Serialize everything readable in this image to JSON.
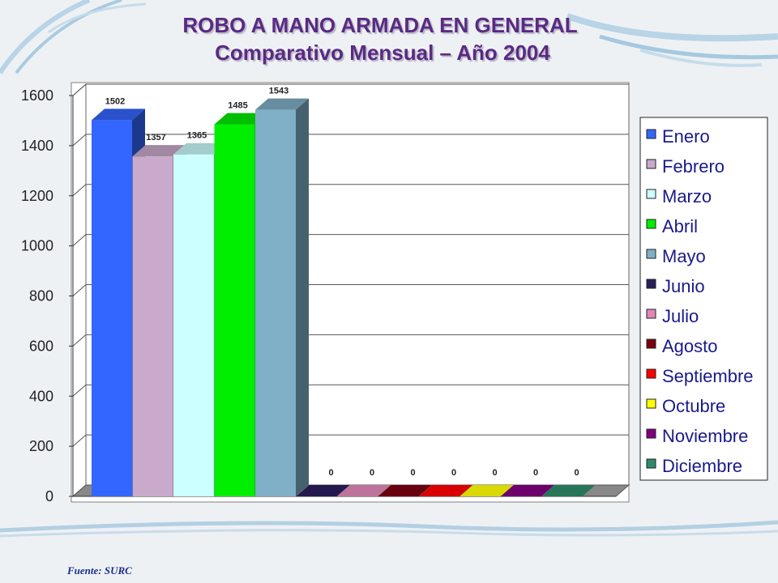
{
  "title": "ROBO A MANO ARMADA EN GENERAL",
  "subtitle": "Comparativo Mensual – Año 2004",
  "source": "Fuente: SURC",
  "chart_data": {
    "type": "bar",
    "categories": [
      "Enero",
      "Febrero",
      "Marzo",
      "Abril",
      "Mayo",
      "Junio",
      "Julio",
      "Agosto",
      "Septiembre",
      "Octubre",
      "Noviembre",
      "Diciembre"
    ],
    "values": [
      1502,
      1357,
      1365,
      1485,
      1543,
      0,
      0,
      0,
      0,
      0,
      0,
      0
    ],
    "colors": [
      "#3366ff",
      "#c9aacc",
      "#ccffff",
      "#00ee00",
      "#7fb0c8",
      "#2a1d5c",
      "#e087b8",
      "#7a0010",
      "#ff0000",
      "#ffff00",
      "#800080",
      "#2e8b6a"
    ],
    "ylim": [
      0,
      1600
    ],
    "yticks": [
      0,
      200,
      400,
      600,
      800,
      1000,
      1200,
      1400,
      1600
    ],
    "bar_style": "3d",
    "legend_position": "right",
    "grid": true
  }
}
